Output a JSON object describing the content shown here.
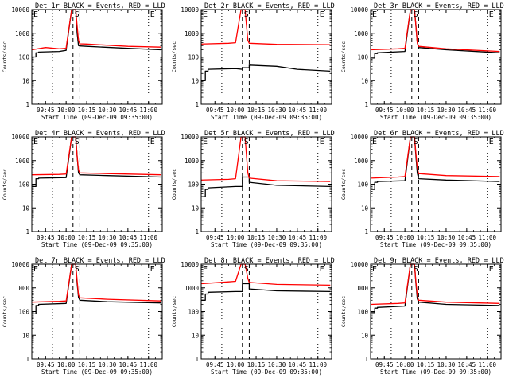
{
  "figure": {
    "x_tick_labels": [
      "09:45",
      "10:00",
      "10:15",
      "10:30",
      "10:45",
      "11:00"
    ],
    "y_tick_labels": [
      "1",
      "10",
      "100",
      "1000",
      "10000"
    ],
    "x_label": "Start Time (09-Dec-09 09:35:00)",
    "y_label": "Counts/sec",
    "markers": {
      "E": "E",
      "S": "S"
    },
    "colors": {
      "events": "#000000",
      "lld": "#ff0000",
      "background": "#ffffff"
    }
  },
  "chart_data": [
    {
      "type": "line",
      "title": "Det 1r BLACK = Events, RED = LLD",
      "xlabel": "Start Time (09-Dec-09 09:35:00)",
      "ylabel": "Counts/sec",
      "ylim": [
        1,
        10000
      ],
      "y_scale": "log",
      "x_range": [
        "09:35",
        "11:10"
      ],
      "markers": [
        {
          "label": "E",
          "time": "09:35"
        },
        {
          "label": "S",
          "time": "10:05"
        },
        {
          "label": "E",
          "time": "11:00"
        }
      ],
      "dashed_lines": [
        "10:05",
        "10:10"
      ],
      "dotted_lines": [
        "09:50",
        "11:00"
      ],
      "series": [
        {
          "color": "#000000",
          "x": [
            "09:35",
            "09:38",
            "09:38",
            "09:40",
            "09:40",
            "09:55",
            "10:00",
            "10:00",
            "10:04",
            "10:07",
            "10:08",
            "10:09",
            "10:10",
            "10:15",
            "10:45",
            "11:09"
          ],
          "y": [
            100,
            100,
            150,
            150,
            160,
            170,
            190,
            200,
            10000,
            10000,
            1000,
            300,
            290,
            280,
            230,
            200
          ]
        },
        {
          "color": "#ff0000",
          "x": [
            "09:35",
            "09:45",
            "09:55",
            "10:00",
            "10:00",
            "10:04",
            "10:07",
            "10:08",
            "10:09",
            "10:10",
            "10:15",
            "10:45",
            "11:09"
          ],
          "y": [
            200,
            250,
            220,
            230,
            250,
            10000,
            10000,
            2000,
            500,
            360,
            350,
            280,
            260
          ]
        }
      ]
    },
    {
      "type": "line",
      "title": "Det 2r BLACK = Events, RED = LLD",
      "xlabel": "Start Time (09-Dec-09 09:35:00)",
      "ylabel": "Counts/sec",
      "ylim": [
        1,
        10000
      ],
      "y_scale": "log",
      "x_range": [
        "09:35",
        "11:10"
      ],
      "markers": [
        {
          "label": "E",
          "time": "09:35"
        },
        {
          "label": "S",
          "time": "10:05"
        },
        {
          "label": "E",
          "time": "11:00"
        }
      ],
      "dashed_lines": [
        "10:05",
        "10:10"
      ],
      "dotted_lines": [
        "09:50",
        "11:00"
      ],
      "series": [
        {
          "color": "#000000",
          "x": [
            "09:35",
            "09:38",
            "09:38",
            "09:40",
            "09:40",
            "10:00",
            "10:05",
            "10:05",
            "10:10",
            "10:10",
            "10:30",
            "10:45",
            "11:09"
          ],
          "y": [
            10,
            10,
            25,
            25,
            30,
            32,
            30,
            35,
            35,
            45,
            40,
            30,
            25
          ]
        },
        {
          "color": "#ff0000",
          "x": [
            "09:35",
            "09:55",
            "10:00",
            "10:04",
            "10:07",
            "10:08",
            "10:09",
            "10:10",
            "10:30",
            "11:09"
          ],
          "y": [
            350,
            380,
            400,
            10000,
            10000,
            2000,
            500,
            380,
            340,
            330
          ]
        }
      ]
    },
    {
      "type": "line",
      "title": "Det 3r BLACK = Events, RED = LLD",
      "xlabel": "Start Time (09-Dec-09 09:35:00)",
      "ylabel": "Counts/sec",
      "ylim": [
        1,
        10000
      ],
      "y_scale": "log",
      "x_range": [
        "09:35",
        "11:10"
      ],
      "markers": [
        {
          "label": "E",
          "time": "09:35"
        },
        {
          "label": "S",
          "time": "10:05"
        },
        {
          "label": "E",
          "time": "11:00"
        }
      ],
      "dashed_lines": [
        "10:05",
        "10:10"
      ],
      "dotted_lines": [
        "09:50",
        "11:00"
      ],
      "series": [
        {
          "color": "#000000",
          "x": [
            "09:35",
            "09:38",
            "09:38",
            "09:40",
            "09:40",
            "10:00",
            "10:04",
            "10:07",
            "10:08",
            "10:09",
            "10:10",
            "10:30",
            "11:09"
          ],
          "y": [
            90,
            90,
            140,
            140,
            150,
            170,
            10000,
            10000,
            2000,
            400,
            250,
            200,
            150
          ]
        },
        {
          "color": "#ff0000",
          "x": [
            "09:35",
            "09:55",
            "10:00",
            "10:04",
            "10:07",
            "10:08",
            "10:09",
            "10:10",
            "10:30",
            "11:09"
          ],
          "y": [
            200,
            220,
            230,
            10000,
            10000,
            2000,
            400,
            280,
            220,
            170
          ]
        }
      ]
    },
    {
      "type": "line",
      "title": "Det 4r BLACK = Events, RED = LLD",
      "xlabel": "Start Time (09-Dec-09 09:35:00)",
      "ylabel": "Counts/sec",
      "ylim": [
        1,
        10000
      ],
      "y_scale": "log",
      "x_range": [
        "09:35",
        "11:10"
      ],
      "markers": [
        {
          "label": "E",
          "time": "09:35"
        },
        {
          "label": "S",
          "time": "10:05"
        },
        {
          "label": "E",
          "time": "11:00"
        }
      ],
      "dashed_lines": [
        "10:05",
        "10:10"
      ],
      "dotted_lines": [
        "09:50",
        "11:00"
      ],
      "series": [
        {
          "color": "#000000",
          "x": [
            "09:35",
            "09:38",
            "09:38",
            "09:40",
            "09:40",
            "10:00",
            "10:04",
            "10:07",
            "10:08",
            "10:09",
            "10:10",
            "10:30",
            "11:09"
          ],
          "y": [
            80,
            80,
            170,
            170,
            180,
            190,
            10000,
            10000,
            1500,
            300,
            250,
            230,
            200
          ]
        },
        {
          "color": "#ff0000",
          "x": [
            "09:35",
            "09:55",
            "10:00",
            "10:04",
            "10:07",
            "10:08",
            "10:09",
            "10:10",
            "10:30",
            "11:09"
          ],
          "y": [
            250,
            260,
            270,
            10000,
            10000,
            1500,
            400,
            300,
            280,
            250
          ]
        }
      ]
    },
    {
      "type": "line",
      "title": "Det 5r BLACK = Events, RED = LLD",
      "xlabel": "Start Time (09-Dec-09 09:35:00)",
      "ylabel": "Counts/sec",
      "ylim": [
        1,
        10000
      ],
      "y_scale": "log",
      "x_range": [
        "09:35",
        "11:10"
      ],
      "markers": [
        {
          "label": "E",
          "time": "09:35"
        },
        {
          "label": "S",
          "time": "10:05"
        },
        {
          "label": "E",
          "time": "11:00"
        }
      ],
      "dashed_lines": [
        "10:05",
        "10:10"
      ],
      "dotted_lines": [
        "09:50",
        "11:00"
      ],
      "series": [
        {
          "color": "#000000",
          "x": [
            "09:35",
            "09:38",
            "09:38",
            "09:40",
            "09:40",
            "10:00",
            "10:05",
            "10:05",
            "10:10",
            "10:10",
            "10:30",
            "11:09"
          ],
          "y": [
            30,
            30,
            60,
            60,
            70,
            80,
            80,
            200,
            200,
            120,
            90,
            80
          ]
        },
        {
          "color": "#ff0000",
          "x": [
            "09:35",
            "09:55",
            "10:00",
            "10:04",
            "10:07",
            "10:08",
            "10:09",
            "10:10",
            "10:30",
            "11:09"
          ],
          "y": [
            150,
            160,
            170,
            10000,
            10000,
            1500,
            300,
            180,
            140,
            130
          ]
        }
      ]
    },
    {
      "type": "line",
      "title": "Det 6r BLACK = Events, RED = LLD",
      "xlabel": "Start Time (09-Dec-09 09:35:00)",
      "ylabel": "Counts/sec",
      "ylim": [
        1,
        10000
      ],
      "y_scale": "log",
      "x_range": [
        "09:35",
        "11:10"
      ],
      "markers": [
        {
          "label": "E",
          "time": "09:35"
        },
        {
          "label": "S",
          "time": "10:05"
        },
        {
          "label": "E",
          "time": "11:00"
        }
      ],
      "dashed_lines": [
        "10:05",
        "10:10"
      ],
      "dotted_lines": [
        "09:50",
        "11:00"
      ],
      "series": [
        {
          "color": "#000000",
          "x": [
            "09:35",
            "09:38",
            "09:38",
            "09:40",
            "09:40",
            "10:00",
            "10:04",
            "10:07",
            "10:08",
            "10:09",
            "10:10",
            "10:30",
            "11:09"
          ],
          "y": [
            60,
            60,
            120,
            120,
            130,
            140,
            10000,
            10000,
            1500,
            300,
            170,
            150,
            130
          ]
        },
        {
          "color": "#ff0000",
          "x": [
            "09:35",
            "09:55",
            "10:00",
            "10:04",
            "10:07",
            "10:08",
            "10:09",
            "10:10",
            "10:30",
            "11:09"
          ],
          "y": [
            180,
            200,
            210,
            10000,
            10000,
            2000,
            500,
            280,
            230,
            210
          ]
        }
      ]
    },
    {
      "type": "line",
      "title": "Det 7r BLACK = Events, RED = LLD",
      "xlabel": "Start Time (09-Dec-09 09:35:00)",
      "ylabel": "Counts/sec",
      "ylim": [
        1,
        10000
      ],
      "y_scale": "log",
      "x_range": [
        "09:35",
        "11:10"
      ],
      "markers": [
        {
          "label": "E",
          "time": "09:35"
        },
        {
          "label": "S",
          "time": "10:05"
        },
        {
          "label": "E",
          "time": "11:00"
        }
      ],
      "dashed_lines": [
        "10:05",
        "10:10"
      ],
      "dotted_lines": [
        "09:50",
        "11:00"
      ],
      "series": [
        {
          "color": "#000000",
          "x": [
            "09:35",
            "09:38",
            "09:38",
            "09:40",
            "09:40",
            "10:00",
            "10:04",
            "10:07",
            "10:08",
            "10:09",
            "10:10",
            "10:30",
            "11:09"
          ],
          "y": [
            80,
            80,
            180,
            180,
            200,
            220,
            10000,
            10000,
            1500,
            400,
            300,
            260,
            230
          ]
        },
        {
          "color": "#ff0000",
          "x": [
            "09:35",
            "09:55",
            "10:00",
            "10:04",
            "10:07",
            "10:08",
            "10:09",
            "10:10",
            "10:30",
            "11:09"
          ],
          "y": [
            250,
            270,
            280,
            10000,
            10000,
            2000,
            500,
            380,
            330,
            280
          ]
        }
      ]
    },
    {
      "type": "line",
      "title": "Det 8r BLACK = Events, RED = LLD",
      "xlabel": "Start Time (09-Dec-09 09:35:00)",
      "ylabel": "Counts/sec",
      "ylim": [
        1,
        10000
      ],
      "y_scale": "log",
      "x_range": [
        "09:35",
        "11:10"
      ],
      "markers": [
        {
          "label": "E",
          "time": "09:35"
        },
        {
          "label": "S",
          "time": "10:05"
        },
        {
          "label": "E",
          "time": "11:00"
        }
      ],
      "dashed_lines": [
        "10:05",
        "10:10"
      ],
      "dotted_lines": [
        "09:50",
        "11:00"
      ],
      "series": [
        {
          "color": "#000000",
          "x": [
            "09:35",
            "09:38",
            "09:38",
            "09:40",
            "09:40",
            "10:00",
            "10:05",
            "10:05",
            "10:10",
            "10:10",
            "10:30",
            "11:09"
          ],
          "y": [
            300,
            300,
            550,
            550,
            650,
            700,
            700,
            1500,
            1500,
            900,
            750,
            700
          ]
        },
        {
          "color": "#ff0000",
          "x": [
            "09:35",
            "09:55",
            "10:00",
            "10:04",
            "10:07",
            "10:08",
            "10:09",
            "10:10",
            "10:30",
            "11:09"
          ],
          "y": [
            1500,
            1800,
            1900,
            10000,
            10000,
            5000,
            2500,
            1700,
            1400,
            1300
          ]
        }
      ]
    },
    {
      "type": "line",
      "title": "Det 9r BLACK = Events, RED = LLD",
      "xlabel": "Start Time (09-Dec-09 09:35:00)",
      "ylabel": "Counts/sec",
      "ylim": [
        1,
        10000
      ],
      "y_scale": "log",
      "x_range": [
        "09:35",
        "11:10"
      ],
      "markers": [
        {
          "label": "E",
          "time": "09:35"
        },
        {
          "label": "S",
          "time": "10:05"
        },
        {
          "label": "E",
          "time": "11:00"
        }
      ],
      "dashed_lines": [
        "10:05",
        "10:10"
      ],
      "dotted_lines": [
        "09:50",
        "11:00"
      ],
      "series": [
        {
          "color": "#000000",
          "x": [
            "09:35",
            "09:38",
            "09:38",
            "09:40",
            "09:40",
            "10:00",
            "10:04",
            "10:07",
            "10:08",
            "10:09",
            "10:10",
            "10:30",
            "11:09"
          ],
          "y": [
            90,
            90,
            140,
            140,
            150,
            170,
            10000,
            10000,
            1500,
            350,
            250,
            200,
            180
          ]
        },
        {
          "color": "#ff0000",
          "x": [
            "09:35",
            "09:55",
            "10:00",
            "10:04",
            "10:07",
            "10:08",
            "10:09",
            "10:10",
            "10:30",
            "11:09"
          ],
          "y": [
            200,
            220,
            230,
            10000,
            10000,
            1800,
            500,
            300,
            250,
            220
          ]
        }
      ]
    }
  ]
}
